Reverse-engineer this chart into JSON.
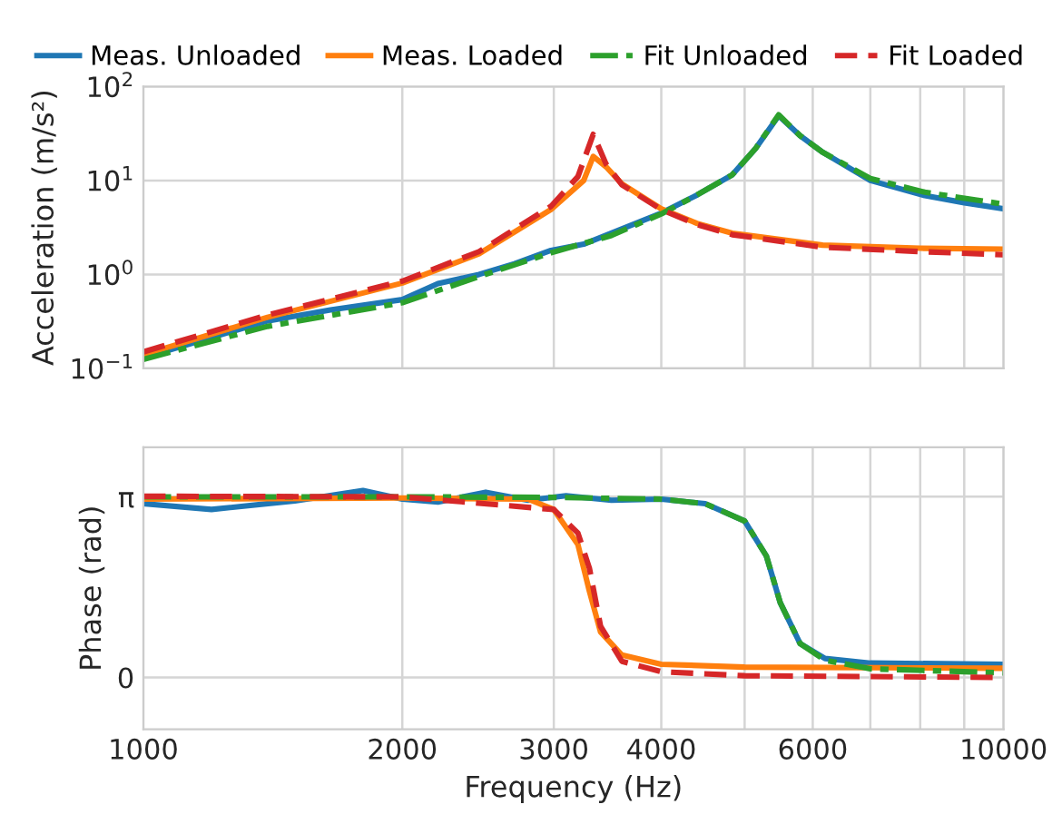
{
  "chart_data": [
    {
      "type": "line",
      "ylabel": "Acceleration (m/s²)",
      "log": "xy",
      "xlim": [
        1000,
        10000
      ],
      "ylim": [
        0.1,
        100
      ],
      "grid": true,
      "legend": "top",
      "tick_labels": "y",
      "xticks": [
        {
          "value": 1000,
          "label": null
        },
        {
          "value": 2000,
          "label": null
        },
        {
          "value": 3000,
          "label": null
        },
        {
          "value": 4000,
          "label": null
        },
        {
          "value": 5000,
          "label": null
        },
        {
          "value": 6000,
          "label": null
        },
        {
          "value": 7000,
          "label": null
        },
        {
          "value": 8000,
          "label": null
        },
        {
          "value": 9000,
          "label": null
        },
        {
          "value": 10000,
          "label": null
        }
      ],
      "yticks": [
        {
          "value": 0.1,
          "label": "10$^{−1}$"
        },
        {
          "value": 1,
          "label": "10$^{0}$"
        },
        {
          "value": 10,
          "label": "10$^{1}$"
        },
        {
          "value": 100,
          "label": "10$^{2}$"
        }
      ],
      "series": [
        {
          "name": "Meas. Unloaded",
          "color": "#1f77b4",
          "line_style": "solid",
          "x": [
            1000,
            1150,
            1394,
            1650,
            2000,
            2200,
            2456,
            2700,
            2977,
            3250,
            3500,
            4000,
            4400,
            4838,
            5150,
            5477,
            5800,
            6160,
            7000,
            8100,
            9000,
            10000
          ],
          "values": [
            0.13,
            0.19,
            0.32,
            0.42,
            0.54,
            0.8,
            1.0,
            1.3,
            1.8,
            2.1,
            2.75,
            4.5,
            7,
            11.5,
            22,
            49,
            30,
            20,
            10,
            6.9,
            5.8,
            5.0
          ]
        },
        {
          "name": "Meas. Loaded",
          "color": "#ff7f0e",
          "line_style": "solid",
          "x": [
            1000,
            1394,
            2000,
            2456,
            2977,
            3250,
            3334,
            3450,
            3600,
            4000,
            4400,
            4838,
            6160,
            8000,
            10000
          ],
          "values": [
            0.14,
            0.35,
            0.81,
            1.66,
            4.9,
            10,
            18,
            14,
            9.2,
            5,
            3.5,
            2.75,
            2.05,
            1.9,
            1.86
          ]
        },
        {
          "name": "Fit Unloaded",
          "color": "#2ca02c",
          "line_style": "dashdot",
          "x": [
            1000,
            1394,
            2000,
            2456,
            2977,
            3500,
            4000,
            4400,
            4838,
            5150,
            5477,
            5800,
            6160,
            7000,
            8100,
            10000
          ],
          "values": [
            0.125,
            0.28,
            0.5,
            0.95,
            1.7,
            2.6,
            4.4,
            7,
            11.5,
            22,
            50,
            30,
            20,
            10.5,
            7.5,
            5.6
          ]
        },
        {
          "name": "Fit Loaded",
          "color": "#d62728",
          "line_style": "dashed",
          "x": [
            1000,
            1394,
            2000,
            2456,
            2977,
            3200,
            3334,
            3450,
            3600,
            4000,
            4400,
            4838,
            6160,
            8000,
            10000
          ],
          "values": [
            0.15,
            0.37,
            0.85,
            1.75,
            5.3,
            11,
            31,
            15,
            9,
            4.9,
            3.4,
            2.65,
            1.95,
            1.75,
            1.62
          ]
        }
      ]
    },
    {
      "type": "line",
      "xlabel": "Frequency (Hz)",
      "ylabel": "Phase (rad)",
      "log": "x",
      "xlim": [
        1000,
        10000
      ],
      "ylim": [
        -0.9,
        4.0
      ],
      "grid": true,
      "legend": false,
      "xticks": [
        1000,
        2000,
        3000,
        4000,
        {
          "value": 5000,
          "label": null
        },
        6000,
        {
          "value": 7000,
          "label": null
        },
        {
          "value": 8000,
          "label": null
        },
        {
          "value": 9000,
          "label": null
        },
        10000
      ],
      "yticks": [
        0,
        {
          "value": 3.1416,
          "label": "π"
        }
      ],
      "series": [
        {
          "color": "#1f77b4",
          "line_style": "solid",
          "x": [
            1000,
            1200,
            1500,
            1800,
            2000,
            2200,
            2500,
            2800,
            3100,
            3500,
            4000,
            4500,
            5000,
            5300,
            5500,
            5800,
            6200,
            7000,
            10000
          ],
          "values": [
            3.02,
            2.92,
            3.07,
            3.25,
            3.1,
            3.05,
            3.22,
            3.08,
            3.16,
            3.08,
            3.1,
            3.02,
            2.72,
            2.11,
            1.3,
            0.59,
            0.33,
            0.25,
            0.23
          ]
        },
        {
          "color": "#ff7f0e",
          "line_style": "solid",
          "x": [
            1000,
            2000,
            2800,
            3000,
            3200,
            3300,
            3400,
            3600,
            4000,
            5000,
            10000
          ],
          "values": [
            3.1,
            3.12,
            3.1,
            2.92,
            2.31,
            1.5,
            0.79,
            0.39,
            0.23,
            0.18,
            0.16
          ]
        },
        {
          "color": "#2ca02c",
          "line_style": "dashdot",
          "x": [
            1000,
            2000,
            3000,
            4000,
            4500,
            5000,
            5300,
            5500,
            5800,
            6200,
            7000,
            10000
          ],
          "values": [
            3.14,
            3.14,
            3.13,
            3.1,
            3.02,
            2.72,
            2.11,
            1.3,
            0.59,
            0.3,
            0.15,
            0.08
          ]
        },
        {
          "color": "#d62728",
          "line_style": "dashed",
          "x": [
            1000,
            2000,
            3000,
            3200,
            3300,
            3400,
            3600,
            4000,
            5000,
            10000
          ],
          "values": [
            3.15,
            3.14,
            2.92,
            2.51,
            1.9,
            0.89,
            0.28,
            0.1,
            0.03,
            0.0
          ]
        }
      ]
    }
  ]
}
